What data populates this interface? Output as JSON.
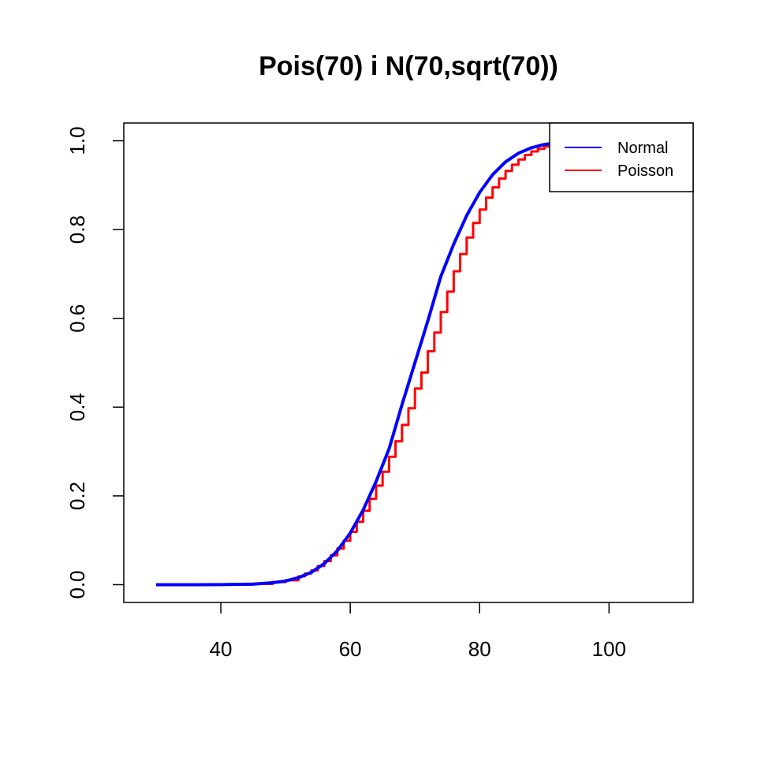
{
  "chart_data": {
    "type": "line",
    "title": "Pois(70) i N(70,sqrt(70))",
    "xlabel": "",
    "ylabel": "",
    "xlim": [
      25,
      113
    ],
    "ylim": [
      -0.04,
      1.04
    ],
    "x_ticks": [
      40,
      60,
      80,
      100
    ],
    "x_tick_labels": [
      "40",
      "60",
      "80",
      "100"
    ],
    "y_ticks": [
      0.0,
      0.2,
      0.4,
      0.6,
      0.8,
      1.0
    ],
    "y_tick_labels": [
      "0.0",
      "0.2",
      "0.4",
      "0.6",
      "0.8",
      "1.0"
    ],
    "grid": false,
    "legend_position": "top-right",
    "series": [
      {
        "name": "Normal",
        "color": "#0000ff",
        "style": "line",
        "x": [
          30,
          35,
          40,
          45,
          48,
          50,
          52,
          54,
          56,
          58,
          60,
          62,
          64,
          66,
          68,
          70,
          72,
          74,
          76,
          78,
          80,
          82,
          84,
          86,
          88,
          90,
          92
        ],
        "y": [
          0.0,
          0.0,
          0.0002,
          0.0013,
          0.0044,
          0.0084,
          0.0157,
          0.028,
          0.0476,
          0.0766,
          0.1164,
          0.1685,
          0.2326,
          0.3058,
          0.4055,
          0.5,
          0.5945,
          0.6942,
          0.7674,
          0.8315,
          0.8836,
          0.9234,
          0.9524,
          0.972,
          0.9843,
          0.9916,
          0.9957
        ]
      },
      {
        "name": "Poisson",
        "color": "#ff0000",
        "style": "step",
        "x": [
          30,
          35,
          40,
          45,
          48,
          50,
          52,
          53,
          54,
          55,
          56,
          57,
          58,
          59,
          60,
          61,
          62,
          63,
          64,
          65,
          66,
          67,
          68,
          69,
          70,
          71,
          72,
          73,
          74,
          75,
          76,
          77,
          78,
          79,
          80,
          81,
          82,
          83,
          84,
          85,
          86,
          87,
          88,
          89,
          90,
          91,
          92
        ],
        "y": [
          0.0,
          0.0,
          0.0002,
          0.0018,
          0.006,
          0.01,
          0.0188,
          0.0254,
          0.0325,
          0.042,
          0.053,
          0.066,
          0.0815,
          0.099,
          0.119,
          0.1415,
          0.1665,
          0.1935,
          0.223,
          0.2545,
          0.288,
          0.323,
          0.3598,
          0.3975,
          0.442,
          0.478,
          0.526,
          0.568,
          0.614,
          0.66,
          0.706,
          0.745,
          0.782,
          0.815,
          0.845,
          0.872,
          0.895,
          0.915,
          0.932,
          0.946,
          0.958,
          0.968,
          0.976,
          0.982,
          0.987,
          0.9905,
          0.9935
        ]
      }
    ]
  }
}
